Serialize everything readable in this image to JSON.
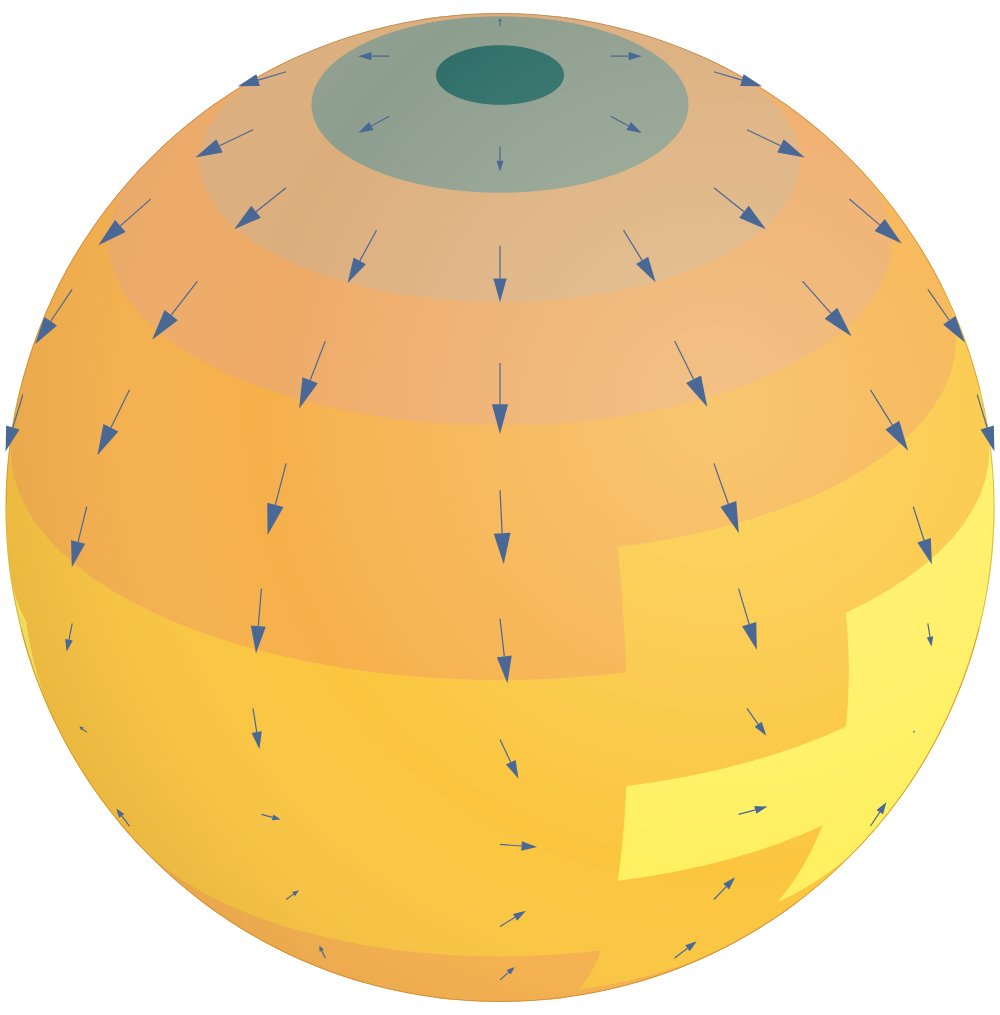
{
  "chart_data": {
    "type": "sphere_vector_field",
    "field": {
      "lats": [
        90,
        75,
        60,
        45,
        30,
        15,
        0,
        -15,
        -30,
        -45,
        -60
      ],
      "lons": [
        -180,
        -150,
        -120,
        -90,
        -60,
        -30,
        0,
        30,
        60,
        90,
        120,
        150
      ],
      "values": [
        [
          0,
          0,
          0,
          0,
          0,
          0,
          0,
          0,
          0,
          0,
          0,
          0
        ],
        [
          1.5,
          1.5,
          1.5,
          1.5,
          1.5,
          1.5,
          1.5,
          1.5,
          1.5,
          1.5,
          1.5,
          1.5
        ],
        [
          2.9,
          2.8,
          2.8,
          2.9,
          3.0,
          3.0,
          3.0,
          3.1,
          3.2,
          3.2,
          3.1,
          3.0
        ],
        [
          4.3,
          4.2,
          4.2,
          4.4,
          4.5,
          4.5,
          4.5,
          4.7,
          4.8,
          4.8,
          4.6,
          4.4
        ],
        [
          5.5,
          5.4,
          5.4,
          5.7,
          5.8,
          5.8,
          5.9,
          6.1,
          6.3,
          6.3,
          6.0,
          5.7
        ],
        [
          6.4,
          6.3,
          6.4,
          6.8,
          6.8,
          6.8,
          6.9,
          7.2,
          7.6,
          7.6,
          7.0,
          6.6
        ],
        [
          7.0,
          6.9,
          7.2,
          7.9,
          7.5,
          7.4,
          7.5,
          8.1,
          8.8,
          8.5,
          7.6,
          7.2
        ],
        [
          7.2,
          7.1,
          7.5,
          8.6,
          7.8,
          7.6,
          7.8,
          8.6,
          9.6,
          8.9,
          7.9,
          7.4
        ],
        [
          7.0,
          6.9,
          7.2,
          7.9,
          7.4,
          7.2,
          7.4,
          8.0,
          8.6,
          8.2,
          7.5,
          7.1
        ],
        [
          6.6,
          6.5,
          6.7,
          7.0,
          6.8,
          6.7,
          6.8,
          7.1,
          7.4,
          7.2,
          6.9,
          6.7
        ],
        [
          6.2,
          6.2,
          6.2,
          6.3,
          6.2,
          6.2,
          6.2,
          6.3,
          6.4,
          6.3,
          6.2,
          6.2
        ]
      ],
      "levels": [
        0,
        1,
        2.5,
        4,
        5.5,
        7,
        8.5,
        10
      ],
      "colors": [
        "#2e6e68",
        "#8e9e8e",
        "#dcae7c",
        "#eeaa66",
        "#f6b04a",
        "#fbc63e",
        "#fff060"
      ]
    },
    "vectors": {
      "color": "#4a6896",
      "values": [
        [
          -180,
          75,
          0,
          -0.5
        ],
        [
          -120,
          75,
          0,
          -0.5
        ],
        [
          -60,
          75,
          0,
          -0.5
        ],
        [
          0,
          75,
          0,
          -0.5
        ],
        [
          60,
          75,
          0,
          -0.5
        ],
        [
          120,
          75,
          0,
          -0.5
        ],
        [
          -120,
          60,
          -0.05,
          -0.9
        ],
        [
          -90,
          60,
          -0.05,
          -0.9
        ],
        [
          -60,
          60,
          -0.05,
          -0.9
        ],
        [
          -30,
          60,
          0,
          -0.9
        ],
        [
          0,
          60,
          0,
          -0.9
        ],
        [
          30,
          60,
          0.05,
          -0.9
        ],
        [
          60,
          60,
          0.05,
          -0.9
        ],
        [
          90,
          60,
          0.05,
          -0.9
        ],
        [
          120,
          60,
          0.05,
          -0.9
        ],
        [
          -90,
          45,
          0,
          -1.0
        ],
        [
          -60,
          45,
          0,
          -1.0
        ],
        [
          -30,
          45,
          0,
          -1.0
        ],
        [
          0,
          45,
          0,
          -1.0
        ],
        [
          30,
          45,
          0.1,
          -1.0
        ],
        [
          60,
          45,
          0.1,
          -1.0
        ],
        [
          90,
          45,
          0.05,
          -1.0
        ],
        [
          -90,
          30,
          -0.05,
          -1.0
        ],
        [
          -60,
          30,
          0,
          -1.0
        ],
        [
          -30,
          30,
          0,
          -1.0
        ],
        [
          0,
          30,
          0.05,
          -1.0
        ],
        [
          30,
          30,
          0.1,
          -1.0
        ],
        [
          60,
          30,
          0.15,
          -1.0
        ],
        [
          90,
          30,
          0.1,
          -1.0
        ],
        [
          -90,
          15,
          0,
          -0.9
        ],
        [
          -60,
          15,
          0,
          -0.9
        ],
        [
          -30,
          15,
          0.05,
          -0.9
        ],
        [
          0,
          15,
          0.1,
          -0.9
        ],
        [
          30,
          15,
          0.15,
          -0.9
        ],
        [
          60,
          15,
          0.1,
          -0.9
        ],
        [
          90,
          15,
          0,
          -0.9
        ],
        [
          -90,
          0,
          0,
          -0.3
        ],
        [
          -60,
          0,
          -0.15,
          -0.5
        ],
        [
          -30,
          0,
          0.1,
          -0.6
        ],
        [
          0,
          0,
          0.25,
          -0.6
        ],
        [
          30,
          0,
          0.3,
          -0.5
        ],
        [
          60,
          0,
          0.1,
          -0.4
        ],
        [
          90,
          0,
          -0.3,
          -0.3
        ],
        [
          -90,
          -15,
          0,
          0.05
        ],
        [
          -60,
          -15,
          -0.2,
          0
        ],
        [
          -30,
          -15,
          0.3,
          0
        ],
        [
          0,
          -15,
          0.5,
          -0.05
        ],
        [
          30,
          -15,
          0.45,
          0
        ],
        [
          60,
          -15,
          0.05,
          0
        ],
        [
          90,
          -15,
          -0.4,
          0
        ],
        [
          -90,
          -30,
          0,
          0.3
        ],
        [
          -60,
          -30,
          -0.1,
          0.3
        ],
        [
          -30,
          -30,
          0.3,
          0.35
        ],
        [
          0,
          -30,
          0.35,
          0.4
        ],
        [
          30,
          -30,
          0.2,
          0.45
        ],
        [
          60,
          -30,
          0,
          0.5
        ],
        [
          90,
          -30,
          -0.3,
          0.3
        ],
        [
          -60,
          -45,
          0,
          0.6
        ],
        [
          -30,
          -45,
          0.15,
          0.6
        ],
        [
          0,
          -45,
          0.2,
          0.6
        ],
        [
          30,
          -45,
          0.1,
          0.6
        ],
        [
          60,
          -45,
          0,
          0.6
        ]
      ]
    }
  }
}
